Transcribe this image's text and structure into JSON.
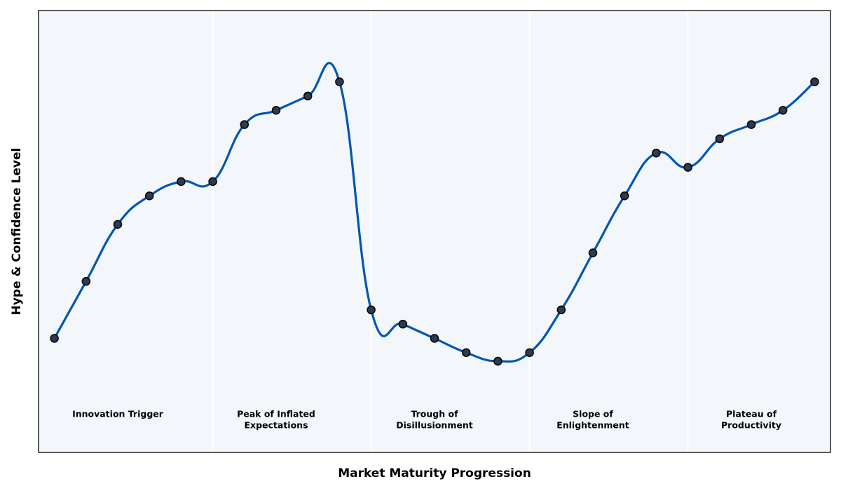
{
  "chart_data": {
    "type": "line",
    "xlabel": "Market Maturity Progression",
    "ylabel": "Hype & Confidence Level",
    "x": [
      0,
      1,
      2,
      3,
      4,
      5,
      6,
      7,
      8,
      9,
      10,
      11,
      12,
      13,
      14,
      15,
      16,
      17,
      18,
      19,
      20,
      21,
      22,
      23,
      24
    ],
    "series": [
      {
        "color": "#0057b0",
        "values": [
          20,
          24,
          28,
          30,
          31,
          31,
          35,
          36,
          37,
          38,
          22,
          21,
          20,
          19,
          18.4,
          19,
          22,
          26,
          30,
          33,
          32,
          34,
          35,
          36,
          38
        ]
      }
    ],
    "xlim": [
      -0.5,
      24.5
    ],
    "ylim": [
      12,
      43
    ],
    "phase_boundaries": [
      5,
      10,
      15,
      20
    ],
    "phases": [
      [
        "Innovation Trigger"
      ],
      [
        "Peak of Inflated",
        "Expectations"
      ],
      [
        "Trough of",
        "Disillusionment"
      ],
      [
        "Slope of",
        "Enlightenment"
      ],
      [
        "Plateau of",
        "Productivity"
      ]
    ],
    "background": "#f3f6fa",
    "marker_color": "#2e3b4e"
  }
}
